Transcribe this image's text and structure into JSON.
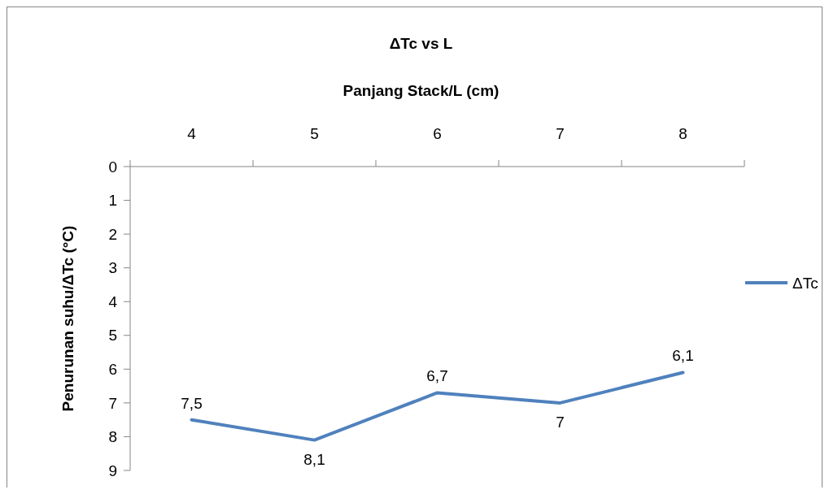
{
  "chart_data": {
    "type": "line",
    "title": "ΔTc vs L",
    "xlabel": "Panjang Stack/L (cm)",
    "ylabel": "Penurunan suhu/ΔTc (°C)",
    "categories": [
      "4",
      "5",
      "6",
      "7",
      "8"
    ],
    "series": [
      {
        "name": "ΔTc",
        "color": "#4f81bd",
        "values": [
          7.5,
          8.1,
          6.7,
          7,
          6.1
        ],
        "value_labels": [
          "7,5",
          "8,1",
          "6,7",
          "7",
          "6,1"
        ]
      }
    ],
    "ylim": [
      9,
      0
    ],
    "yticks": [
      0,
      1,
      2,
      3,
      4,
      5,
      6,
      7,
      8,
      9
    ],
    "legend": "right",
    "marker": "none",
    "line_style": "solid",
    "grid": false
  }
}
